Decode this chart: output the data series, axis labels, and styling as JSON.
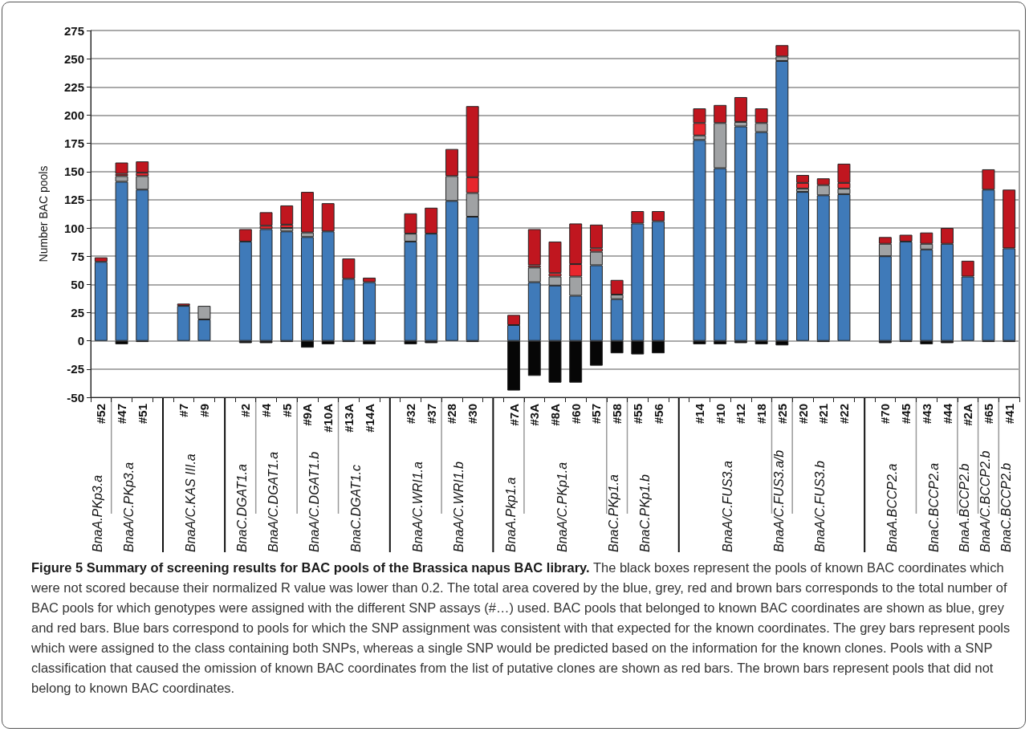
{
  "chart_data": {
    "type": "bar",
    "stacked": true,
    "ylabel": "Number BAC pools",
    "ylim": [
      -50,
      275
    ],
    "yticks": [
      -50,
      -25,
      0,
      25,
      50,
      75,
      100,
      125,
      150,
      175,
      200,
      225,
      250,
      275
    ],
    "grid": "y",
    "categories": [
      "#52",
      "#47",
      "#51",
      null,
      "#7",
      "#9",
      null,
      "#2",
      "#4",
      "#5",
      "#9A",
      "#10A",
      "#13A",
      "#14A",
      null,
      "#32",
      "#37",
      "#28",
      "#30",
      null,
      "#7A",
      "#3A",
      "#8A",
      "#60",
      "#57",
      "#58",
      "#55",
      "#56",
      null,
      "#14",
      "#10",
      "#12",
      "#18",
      "#25",
      "#20",
      "#21",
      "#22",
      null,
      "#70",
      "#45",
      "#43",
      "#44",
      "#2A",
      "#65",
      "#41"
    ],
    "series": [
      {
        "color": "#3f7ab9",
        "values": [
          70,
          141,
          134,
          null,
          31,
          19,
          null,
          88,
          99,
          97,
          92,
          97,
          55,
          52,
          null,
          88,
          95,
          124,
          110,
          null,
          14,
          52,
          49,
          40,
          67,
          37,
          104,
          106,
          null,
          178,
          153,
          190,
          185,
          248,
          132,
          129,
          130,
          null,
          75,
          88,
          81,
          86,
          57,
          134,
          82
        ]
      },
      {
        "color": "#a0a2a4",
        "values": [
          null,
          5,
          12,
          null,
          null,
          12,
          null,
          null,
          null,
          3,
          4,
          null,
          null,
          null,
          null,
          7,
          null,
          22,
          21,
          null,
          null,
          13,
          8,
          17,
          12,
          4,
          null,
          null,
          null,
          4,
          40,
          4,
          8,
          4,
          3,
          9,
          5,
          null,
          11,
          null,
          5,
          null,
          null,
          null,
          null
        ]
      },
      {
        "color": "#e8262d",
        "values": [
          null,
          2,
          3,
          null,
          null,
          null,
          null,
          null,
          3,
          3,
          null,
          null,
          null,
          null,
          null,
          null,
          null,
          null,
          14,
          null,
          null,
          2,
          3,
          11,
          3,
          null,
          null,
          null,
          null,
          11,
          null,
          null,
          null,
          null,
          5,
          null,
          5,
          null,
          null,
          null,
          null,
          null,
          null,
          null,
          null
        ]
      },
      {
        "color": "#c0161f",
        "values": [
          4,
          10,
          10,
          null,
          2,
          null,
          null,
          11,
          12,
          17,
          36,
          25,
          18,
          4,
          null,
          18,
          23,
          24,
          63,
          null,
          9,
          32,
          28,
          36,
          21,
          13,
          11,
          9,
          null,
          13,
          16,
          22,
          13,
          10,
          7,
          6,
          17,
          null,
          6,
          6,
          10,
          14,
          14,
          18,
          52
        ]
      },
      {
        "color": "#060606",
        "values": [
          null,
          -3,
          -1,
          null,
          null,
          null,
          null,
          -2,
          -2,
          -1,
          -6,
          -3,
          -1,
          -3,
          null,
          -3,
          -2,
          null,
          -1,
          null,
          -44,
          -31,
          -37,
          -37,
          -22,
          -11,
          -12,
          -11,
          null,
          -3,
          -3,
          -2,
          -3,
          -4,
          null,
          -1,
          null,
          null,
          -2,
          -1,
          -3,
          -2,
          null,
          -1,
          -1
        ]
      }
    ],
    "annotations": [
      "BnaA.PKp3.a",
      "BnaA/C.PKp3.a",
      "BnaA/C.KAS III.a",
      "BnaC.DGAT1.a",
      "BnaA/C.DGAT1.a",
      "BnaA/C.DGAT1.b",
      "BnaC.DGAT1.c",
      "BnaA/C.WRI1.a",
      "BnaA/C.WRI1.b",
      "BnaA.Pkp1.a",
      "BnaA/C.PKp1.a",
      "BnaC.PKp1.a",
      "BnaC.PKp1.b",
      "BnaA/C.FUS3.a",
      "BnaA/C.FUS3.a/b",
      "BnaA/C.FUS3.b",
      "BnaA.BCCP2.a",
      "BnaC.BCCP2.a",
      "BnaA.BCCP2.b",
      "BnaA/C.BCCP2.b",
      "BnaC.BCCP2.b",
      "Figure 5 Summary of screening results for BAC pools of the Brassica napus BAC library.",
      "The black boxes represent the pools of known BAC coordinates which were not scored because their normalized R value was lower than 0.2. The total area covered by the blue, grey, red and brown bars corresponds to the total number of BAC pools for which genotypes were assigned with the different SNP assays (#…) used. BAC pools that belonged to known BAC coordinates are shown as blue, grey and red bars. Blue bars correspond to pools for which the SNP assignment was consistent with that expected for the known coordinates. The grey bars represent pools which were assigned to the class containing both SNPs, whereas a single SNP would be predicted based on the information for the known clones. Pools with a SNP classification that caused the omission of known BAC coordinates from the list of putative clones are shown as red bars. The brown bars represent pools that did not belong to known BAC coordinates."
    ]
  }
}
